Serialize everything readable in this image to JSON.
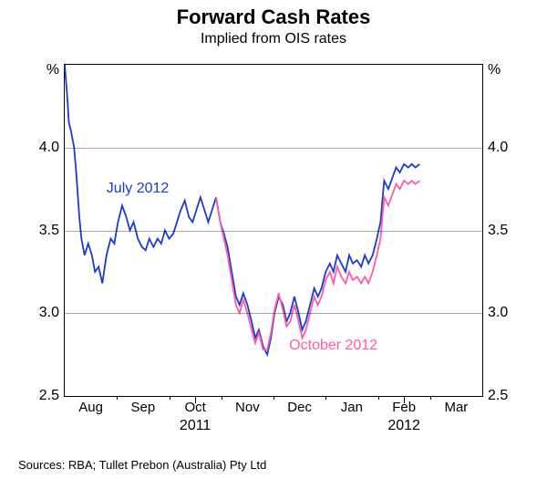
{
  "title": "Forward Cash Rates",
  "subtitle": "Implied from OIS rates",
  "source": "Sources: RBA; Tullet Prebon (Australia) Pty Ltd",
  "chart": {
    "type": "line",
    "background_color": "#ffffff",
    "grid_color": "#999999",
    "border_color": "#000000",
    "y_axis": {
      "unit_left": "%",
      "unit_right": "%",
      "min": 2.5,
      "max": 4.5,
      "tick_step": 0.5,
      "ticks": [
        2.5,
        3.0,
        3.5,
        4.0
      ],
      "tick_labels": [
        "2.5",
        "3.0",
        "3.5",
        "4.0"
      ],
      "label_fontsize": 16
    },
    "x_axis": {
      "domain_start": 0,
      "domain_end": 8,
      "month_labels": [
        "Aug",
        "Sep",
        "Oct",
        "Nov",
        "Dec",
        "Jan",
        "Feb",
        "Mar"
      ],
      "month_positions": [
        0.5,
        1.5,
        2.5,
        3.5,
        4.5,
        5.5,
        6.5,
        7.5
      ],
      "month_boundaries": [
        1,
        2,
        3,
        4,
        5,
        6,
        7
      ],
      "year_labels": [
        {
          "text": "2011",
          "position": 2.5
        },
        {
          "text": "2012",
          "position": 6.5
        }
      ],
      "label_fontsize": 15
    },
    "series": [
      {
        "name": "july-2012",
        "label": "July 2012",
        "color": "#1a3ccc",
        "line_width": 1.8,
        "label_pos": {
          "x": 0.8,
          "y": 3.8
        },
        "data": [
          [
            0.0,
            4.5
          ],
          [
            0.05,
            4.3
          ],
          [
            0.08,
            4.15
          ],
          [
            0.12,
            4.1
          ],
          [
            0.18,
            4.0
          ],
          [
            0.22,
            3.85
          ],
          [
            0.28,
            3.58
          ],
          [
            0.32,
            3.45
          ],
          [
            0.38,
            3.35
          ],
          [
            0.45,
            3.42
          ],
          [
            0.52,
            3.35
          ],
          [
            0.58,
            3.25
          ],
          [
            0.65,
            3.28
          ],
          [
            0.72,
            3.18
          ],
          [
            0.8,
            3.35
          ],
          [
            0.88,
            3.45
          ],
          [
            0.95,
            3.42
          ],
          [
            1.02,
            3.55
          ],
          [
            1.1,
            3.65
          ],
          [
            1.18,
            3.58
          ],
          [
            1.25,
            3.5
          ],
          [
            1.32,
            3.55
          ],
          [
            1.4,
            3.45
          ],
          [
            1.48,
            3.4
          ],
          [
            1.55,
            3.38
          ],
          [
            1.62,
            3.45
          ],
          [
            1.7,
            3.4
          ],
          [
            1.78,
            3.45
          ],
          [
            1.85,
            3.42
          ],
          [
            1.92,
            3.5
          ],
          [
            2.0,
            3.45
          ],
          [
            2.08,
            3.48
          ],
          [
            2.15,
            3.55
          ],
          [
            2.22,
            3.62
          ],
          [
            2.3,
            3.68
          ],
          [
            2.38,
            3.58
          ],
          [
            2.45,
            3.55
          ],
          [
            2.52,
            3.62
          ],
          [
            2.6,
            3.7
          ],
          [
            2.68,
            3.62
          ],
          [
            2.75,
            3.55
          ],
          [
            2.82,
            3.62
          ],
          [
            2.9,
            3.7
          ],
          [
            2.98,
            3.55
          ],
          [
            3.05,
            3.48
          ],
          [
            3.12,
            3.4
          ],
          [
            3.2,
            3.25
          ],
          [
            3.28,
            3.1
          ],
          [
            3.35,
            3.05
          ],
          [
            3.42,
            3.12
          ],
          [
            3.5,
            3.05
          ],
          [
            3.58,
            2.95
          ],
          [
            3.65,
            2.85
          ],
          [
            3.72,
            2.9
          ],
          [
            3.8,
            2.8
          ],
          [
            3.88,
            2.75
          ],
          [
            3.95,
            2.85
          ],
          [
            4.02,
            3.0
          ],
          [
            4.1,
            3.1
          ],
          [
            4.18,
            3.05
          ],
          [
            4.25,
            2.95
          ],
          [
            4.32,
            3.0
          ],
          [
            4.4,
            3.1
          ],
          [
            4.48,
            3.0
          ],
          [
            4.55,
            2.9
          ],
          [
            4.62,
            2.95
          ],
          [
            4.7,
            3.05
          ],
          [
            4.78,
            3.15
          ],
          [
            4.85,
            3.1
          ],
          [
            4.92,
            3.15
          ],
          [
            5.0,
            3.25
          ],
          [
            5.08,
            3.3
          ],
          [
            5.15,
            3.25
          ],
          [
            5.22,
            3.35
          ],
          [
            5.3,
            3.3
          ],
          [
            5.38,
            3.25
          ],
          [
            5.45,
            3.35
          ],
          [
            5.52,
            3.3
          ],
          [
            5.6,
            3.32
          ],
          [
            5.68,
            3.28
          ],
          [
            5.75,
            3.35
          ],
          [
            5.82,
            3.3
          ],
          [
            5.9,
            3.35
          ],
          [
            5.98,
            3.45
          ],
          [
            6.05,
            3.55
          ],
          [
            6.12,
            3.8
          ],
          [
            6.2,
            3.75
          ],
          [
            6.28,
            3.82
          ],
          [
            6.35,
            3.88
          ],
          [
            6.42,
            3.85
          ],
          [
            6.5,
            3.9
          ],
          [
            6.58,
            3.88
          ],
          [
            6.65,
            3.9
          ],
          [
            6.72,
            3.88
          ],
          [
            6.8,
            3.9
          ]
        ]
      },
      {
        "name": "october-2012",
        "label": "October 2012",
        "color": "#ff5ba8",
        "line_width": 1.8,
        "label_pos": {
          "x": 4.3,
          "y": 2.85
        },
        "data": [
          [
            2.9,
            3.7
          ],
          [
            2.98,
            3.55
          ],
          [
            3.05,
            3.45
          ],
          [
            3.12,
            3.35
          ],
          [
            3.2,
            3.2
          ],
          [
            3.28,
            3.05
          ],
          [
            3.35,
            3.0
          ],
          [
            3.42,
            3.08
          ],
          [
            3.5,
            3.0
          ],
          [
            3.58,
            2.9
          ],
          [
            3.65,
            2.82
          ],
          [
            3.72,
            2.88
          ],
          [
            3.8,
            2.78
          ],
          [
            3.88,
            2.78
          ],
          [
            3.95,
            2.88
          ],
          [
            4.02,
            3.02
          ],
          [
            4.1,
            3.12
          ],
          [
            4.18,
            3.02
          ],
          [
            4.25,
            2.92
          ],
          [
            4.32,
            2.95
          ],
          [
            4.4,
            3.05
          ],
          [
            4.48,
            2.95
          ],
          [
            4.55,
            2.85
          ],
          [
            4.62,
            2.9
          ],
          [
            4.7,
            3.0
          ],
          [
            4.78,
            3.1
          ],
          [
            4.85,
            3.05
          ],
          [
            4.92,
            3.1
          ],
          [
            5.0,
            3.2
          ],
          [
            5.08,
            3.25
          ],
          [
            5.15,
            3.18
          ],
          [
            5.22,
            3.28
          ],
          [
            5.3,
            3.22
          ],
          [
            5.38,
            3.18
          ],
          [
            5.45,
            3.25
          ],
          [
            5.52,
            3.2
          ],
          [
            5.6,
            3.22
          ],
          [
            5.68,
            3.18
          ],
          [
            5.75,
            3.22
          ],
          [
            5.82,
            3.18
          ],
          [
            5.9,
            3.25
          ],
          [
            5.98,
            3.35
          ],
          [
            6.05,
            3.45
          ],
          [
            6.12,
            3.7
          ],
          [
            6.2,
            3.65
          ],
          [
            6.28,
            3.72
          ],
          [
            6.35,
            3.78
          ],
          [
            6.42,
            3.75
          ],
          [
            6.5,
            3.8
          ],
          [
            6.58,
            3.78
          ],
          [
            6.65,
            3.8
          ],
          [
            6.72,
            3.78
          ],
          [
            6.8,
            3.8
          ]
        ]
      }
    ]
  }
}
